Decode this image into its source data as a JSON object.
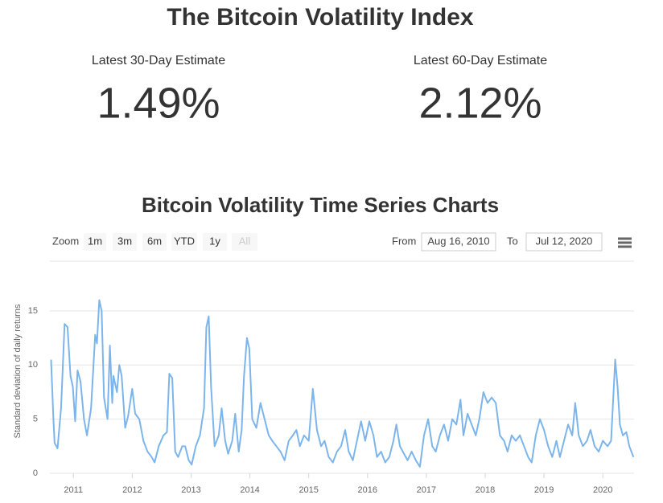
{
  "header": {
    "title": "The Bitcoin Volatility Index"
  },
  "stats": [
    {
      "label": "Latest 30-Day Estimate",
      "value": "1.49%"
    },
    {
      "label": "Latest 60-Day Estimate",
      "value": "2.12%"
    }
  ],
  "range_selector": {
    "zoom_label": "Zoom",
    "buttons": [
      "1m",
      "3m",
      "6m",
      "YTD",
      "1y",
      "All"
    ],
    "from_label": "From",
    "from": "Aug 16, 2010",
    "to_label": "To",
    "to": "Jul 12, 2020"
  },
  "chart_data": {
    "type": "line",
    "title": "Bitcoin Volatility Time Series Charts",
    "y_label": "Standard deviation of daily returns",
    "x": [
      2010.62,
      2010.66,
      2010.68,
      2010.73,
      2010.79,
      2010.85,
      2010.9,
      2010.95,
      2010.99,
      2011.03,
      2011.07,
      2011.12,
      2011.18,
      2011.23,
      2011.3,
      2011.37,
      2011.4,
      2011.44,
      2011.48,
      2011.52,
      2011.58,
      2011.62,
      2011.66,
      2011.68,
      2011.74,
      2011.78,
      2011.82,
      2011.88,
      2011.93,
      2012.0,
      2012.05,
      2012.12,
      2012.19,
      2012.26,
      2012.33,
      2012.38,
      2012.45,
      2012.53,
      2012.59,
      2012.63,
      2012.68,
      2012.73,
      2012.78,
      2012.85,
      2012.9,
      2012.96,
      2013.01,
      2013.08,
      2013.15,
      2013.22,
      2013.26,
      2013.3,
      2013.34,
      2013.4,
      2013.47,
      2013.52,
      2013.58,
      2013.63,
      2013.7,
      2013.75,
      2013.81,
      2013.86,
      2013.9,
      2013.95,
      2013.99,
      2014.04,
      2014.11,
      2014.18,
      2014.25,
      2014.32,
      2014.38,
      2014.45,
      2014.52,
      2014.59,
      2014.66,
      2014.73,
      2014.79,
      2014.85,
      2014.92,
      2015.0,
      2015.07,
      2015.14,
      2015.21,
      2015.27,
      2015.34,
      2015.41,
      2015.48,
      2015.55,
      2015.62,
      2015.68,
      2015.75,
      2015.82,
      2015.89,
      2015.96,
      2016.03,
      2016.1,
      2016.16,
      2016.23,
      2016.3,
      2016.37,
      2016.44,
      2016.49,
      2016.55,
      2016.62,
      2016.68,
      2016.75,
      2016.82,
      2016.89,
      2016.96,
      2017.03,
      2017.1,
      2017.16,
      2017.23,
      2017.3,
      2017.37,
      2017.44,
      2017.51,
      2017.58,
      2017.63,
      2017.7,
      2017.77,
      2017.84,
      2017.9,
      2017.97,
      2018.04,
      2018.11,
      2018.18,
      2018.25,
      2018.32,
      2018.38,
      2018.45,
      2018.52,
      2018.59,
      2018.66,
      2018.73,
      2018.79,
      2018.86,
      2018.93,
      2019.0,
      2019.07,
      2019.14,
      2019.21,
      2019.27,
      2019.34,
      2019.41,
      2019.48,
      2019.53,
      2019.59,
      2019.66,
      2019.73,
      2019.79,
      2019.86,
      2019.93,
      2020.0,
      2020.08,
      2020.14,
      2020.21,
      2020.25,
      2020.29,
      2020.34,
      2020.4,
      2020.45,
      2020.52
    ],
    "series": [
      {
        "color": "#7cb5ec",
        "values": [
          10.5,
          5,
          2.8,
          2.3,
          6,
          13.8,
          13.5,
          9,
          8,
          4.8,
          9.5,
          8.5,
          5,
          3.5,
          6,
          12.8,
          12,
          16,
          15,
          7,
          5,
          11.8,
          6.5,
          9,
          7.5,
          10,
          9,
          4.2,
          5.3,
          7.8,
          5.5,
          5,
          3,
          2,
          1.5,
          1,
          2.5,
          3.5,
          3.8,
          9.2,
          8.8,
          2,
          1.5,
          2.5,
          2.5,
          1.2,
          0.8,
          2.5,
          3.5,
          6,
          13.5,
          14.5,
          8,
          2.5,
          3.5,
          6,
          3,
          1.8,
          3,
          5.5,
          2,
          4,
          9,
          12.5,
          11.5,
          5,
          4.2,
          6.5,
          5,
          3.5,
          3,
          2.5,
          2,
          1.2,
          3,
          3.5,
          4,
          2.5,
          3.5,
          3,
          7.8,
          4,
          2.5,
          3,
          1.5,
          1,
          2,
          2.5,
          4,
          2,
          1.2,
          3,
          4.8,
          3,
          4.8,
          3.5,
          1.5,
          2,
          1,
          1.5,
          3,
          4.5,
          2.5,
          1.8,
          1.2,
          2,
          1.2,
          0.6,
          3.5,
          5,
          2.5,
          2,
          3.5,
          4.5,
          3,
          5,
          4.5,
          6.8,
          3.5,
          5.5,
          4.5,
          3.5,
          5,
          7.5,
          6.5,
          7,
          6.5,
          3.5,
          3,
          2,
          3.5,
          3,
          3.5,
          2.5,
          1.5,
          1,
          3.5,
          5,
          4,
          2.5,
          1.5,
          3,
          1.5,
          3,
          4.5,
          3.5,
          6.5,
          3.5,
          2.5,
          3,
          4,
          2.5,
          2,
          3,
          2.5,
          3,
          10.5,
          8,
          4.5,
          3.5,
          3.8,
          2.5,
          1.5
        ]
      }
    ],
    "xlim": [
      2010.6,
      2020.53
    ],
    "xticks": [
      2011,
      2012,
      2013,
      2014,
      2015,
      2016,
      2017,
      2018,
      2019,
      2020
    ],
    "ylim": [
      0,
      17
    ],
    "yticks": [
      0,
      5,
      10,
      15
    ],
    "grid": true
  }
}
